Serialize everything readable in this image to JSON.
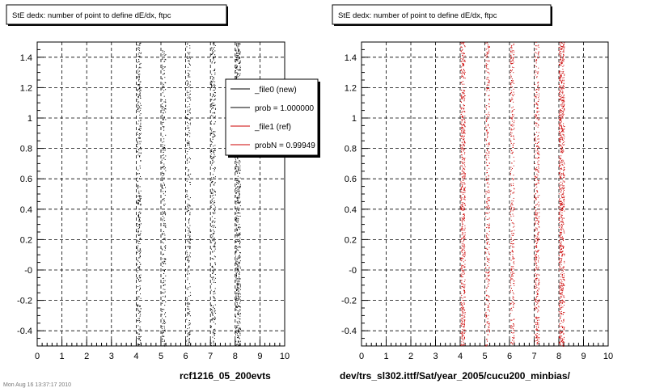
{
  "chart_data": [
    {
      "type": "scatter",
      "title": "StE dedx: number of point to define dE/dx, ftpc",
      "xlabel": "rcf1216_05_200evts",
      "ylabel": "",
      "xlim": [
        0,
        10
      ],
      "ylim": [
        -0.5,
        1.5
      ],
      "x_ticks": [
        "0",
        "1",
        "2",
        "3",
        "4",
        "5",
        "6",
        "7",
        "8",
        "9",
        "10"
      ],
      "y_ticks": [
        "-0.4",
        "-0.2",
        "-0",
        "0.2",
        "0.4",
        "0.6",
        "0.8",
        "1",
        "1.2",
        "1.4"
      ],
      "grid": true,
      "legend_position": "top-right",
      "series": [
        {
          "name": "_file0 (new)",
          "color": "#000000",
          "bands": [
            4.1,
            5.1,
            6.1,
            7.1,
            8.1
          ],
          "band_halfwidth": [
            0.08,
            0.08,
            0.08,
            0.09,
            0.1
          ],
          "point_density": [
            90,
            70,
            70,
            90,
            180
          ]
        },
        {
          "name": "prob = 1.000000",
          "color": "#000000"
        },
        {
          "name": "_file1 (ref)",
          "color": "#cc0000"
        },
        {
          "name": "probN = 0.99949",
          "color": "#cc0000"
        }
      ]
    },
    {
      "type": "scatter",
      "title": "StE dedx: number of point to define dE/dx, ftpc",
      "xlabel": "dev/trs_sl302.ittf/Sat/year_2005/cucu200_minbias/",
      "ylabel": "",
      "xlim": [
        0,
        10
      ],
      "ylim": [
        -0.5,
        1.5
      ],
      "x_ticks": [
        "0",
        "1",
        "2",
        "3",
        "4",
        "5",
        "6",
        "7",
        "8",
        "9",
        "10"
      ],
      "y_ticks": [
        "-0.4",
        "-0.2",
        "-0",
        "0.2",
        "0.4",
        "0.6",
        "0.8",
        "1",
        "1.2",
        "1.4"
      ],
      "grid": true,
      "series": [
        {
          "name": "",
          "color": "#cc0000",
          "bands": [
            4.1,
            5.1,
            6.1,
            7.1,
            8.1
          ],
          "band_halfwidth": [
            0.09,
            0.08,
            0.08,
            0.09,
            0.11
          ],
          "point_density": [
            150,
            80,
            80,
            110,
            200
          ]
        }
      ]
    }
  ],
  "footer_text": "Mon Aug 16 13:37:17 2010"
}
